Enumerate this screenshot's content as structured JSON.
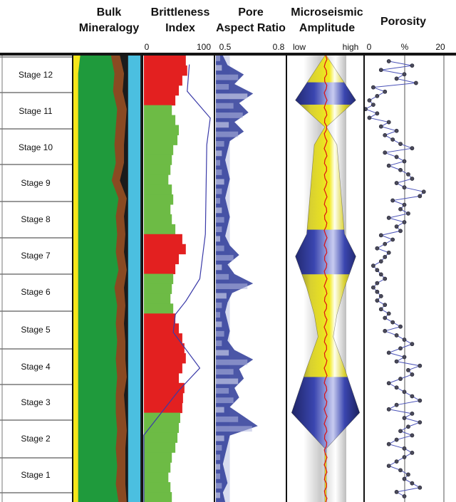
{
  "chart_data": {
    "type": "well-log",
    "tracks": [
      {
        "title": "Bulk Mineralogy",
        "mineral_colors": [
          "#f5e61a",
          "#1f9a3c",
          "#8a4a22",
          "#4bbfe0",
          "#1b1b1b"
        ]
      },
      {
        "title": "Brittleness Index",
        "range": [
          0,
          100
        ],
        "tick_labels": [
          "0",
          "100"
        ],
        "fill_colors": [
          "#e32020",
          "#6dbb45"
        ],
        "line_color": "#3a3aa8"
      },
      {
        "title": "Pore Aspect Ratio",
        "range": [
          0.5,
          0.8
        ],
        "tick_labels": [
          "0.5",
          "0.8"
        ],
        "fill_color": "#2d3a98"
      },
      {
        "title": "Microseismic Amplitude",
        "tick_labels": [
          "low",
          "high"
        ],
        "colors": [
          "#f2ea1d",
          "#2d3a9e"
        ],
        "axis_color": "#e01010"
      },
      {
        "title": "Porosity",
        "range": [
          0,
          20
        ],
        "tick_labels": [
          "0",
          "%",
          "20"
        ],
        "line_color": "#4a52b8",
        "marker_color": "#4a4a5a"
      }
    ],
    "stages": [
      "Stage 12",
      "Stage 11",
      "Stage 10",
      "Stage 9",
      "Stage 8",
      "Stage 7",
      "Stage 6",
      "Stage 5",
      "Stage 4",
      "Stage 3",
      "Stage 2",
      "Stage 1"
    ],
    "mineralogy_fractions": {
      "yellow": [
        0.1,
        0.07,
        0.07,
        0.07,
        0.07,
        0.07,
        0.07,
        0.07,
        0.07,
        0.07,
        0.07,
        0.07,
        0.07,
        0.07,
        0.07,
        0.07,
        0.07,
        0.07,
        0.07,
        0.07,
        0.07,
        0.07,
        0.07,
        0.07,
        0.07,
        0.07
      ],
      "green_end": [
        0.55,
        0.6,
        0.58,
        0.64,
        0.62,
        0.6,
        0.62,
        0.56,
        0.66,
        0.62,
        0.64,
        0.62,
        0.66,
        0.6,
        0.64,
        0.62,
        0.64,
        0.62,
        0.64,
        0.62,
        0.62,
        0.64,
        0.62,
        0.64,
        0.62,
        0.66
      ],
      "brown_end": [
        0.68,
        0.74,
        0.72,
        0.78,
        0.76,
        0.74,
        0.74,
        0.68,
        0.78,
        0.74,
        0.76,
        0.74,
        0.78,
        0.74,
        0.76,
        0.74,
        0.76,
        0.76,
        0.78,
        0.74,
        0.76,
        0.78,
        0.76,
        0.76,
        0.76,
        0.78
      ]
    },
    "brittleness_fill": [
      60,
      62,
      55,
      50,
      45,
      40,
      45,
      50,
      48,
      42,
      40,
      38,
      35,
      40,
      42,
      38,
      40,
      45,
      55,
      60,
      50,
      45,
      42,
      40,
      38,
      42,
      45,
      50,
      55,
      58,
      60,
      55,
      50,
      58,
      56,
      55,
      52,
      50,
      48,
      45,
      40,
      38,
      35,
      38,
      40
    ],
    "brittleness_red_segments": [
      [
        0,
        4
      ],
      [
        18,
        21
      ],
      [
        26,
        35
      ]
    ],
    "brittleness_line": {
      "depth": [
        0.02,
        0.08,
        0.14,
        0.2,
        0.4,
        0.5,
        0.55,
        0.58,
        0.62,
        0.7,
        0.75,
        0.85,
        1.0
      ],
      "value": [
        65,
        62,
        95,
        90,
        88,
        80,
        60,
        45,
        42,
        80,
        50,
        0,
        0
      ]
    },
    "pore_aspect_ratio": [
      0.53,
      0.55,
      0.62,
      0.58,
      0.66,
      0.6,
      0.64,
      0.58,
      0.62,
      0.56,
      0.55,
      0.54,
      0.55,
      0.56,
      0.55,
      0.54,
      0.55,
      0.56,
      0.55,
      0.54,
      0.56,
      0.6,
      0.55,
      0.58,
      0.66,
      0.57,
      0.55,
      0.54,
      0.55,
      0.56,
      0.55,
      0.58,
      0.66,
      0.6,
      0.62,
      0.58,
      0.6,
      0.56,
      0.62,
      0.68,
      0.56,
      0.55,
      0.54,
      0.53,
      0.54,
      0.55,
      0.53,
      0.54
    ],
    "microseismic_profile": [
      [
        0.0,
        0.02
      ],
      [
        0.1,
        0.8
      ],
      [
        0.16,
        0.02
      ],
      [
        0.2,
        0.3
      ],
      [
        0.3,
        0.4
      ],
      [
        0.4,
        0.5
      ],
      [
        0.45,
        0.8
      ],
      [
        0.52,
        0.5
      ],
      [
        0.58,
        0.3
      ],
      [
        0.63,
        0.2
      ],
      [
        0.7,
        0.5
      ],
      [
        0.8,
        0.9
      ],
      [
        0.88,
        0.02
      ],
      [
        1.0,
        0.02
      ]
    ],
    "porosity": [
      6,
      12,
      4,
      10,
      8,
      13,
      2,
      5,
      3,
      1,
      2,
      0,
      3,
      1,
      6,
      4,
      8,
      5,
      7,
      9,
      12,
      5,
      8,
      10,
      6,
      9,
      11,
      12,
      8,
      10,
      15,
      14,
      7,
      10,
      9,
      11,
      6,
      10,
      8,
      9,
      4,
      7,
      5,
      3,
      6,
      5,
      4,
      2,
      3,
      4,
      5,
      3,
      2,
      3,
      4,
      3,
      5,
      4,
      6,
      5,
      7,
      9,
      5,
      8,
      10,
      12,
      9,
      6,
      10,
      8,
      14,
      11,
      12,
      9,
      6,
      8,
      10,
      12,
      14,
      8,
      6,
      12,
      10,
      14,
      11,
      9,
      12,
      8,
      6,
      10,
      12,
      10,
      8,
      6,
      9,
      11,
      10,
      12,
      14,
      8,
      10
    ]
  }
}
